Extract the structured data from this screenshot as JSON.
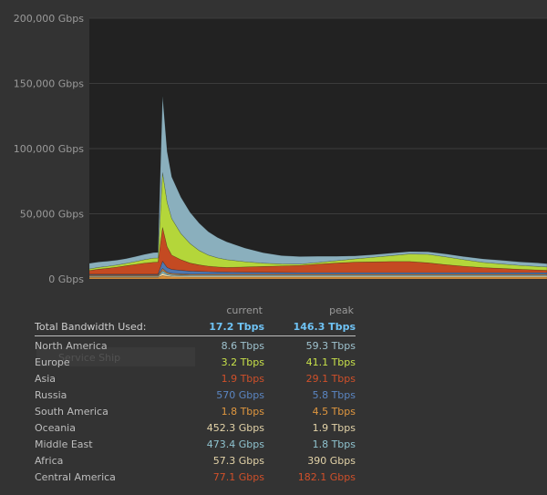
{
  "chart_data": {
    "type": "area",
    "stacked": true,
    "y_ticks": [
      "0 Gbps",
      "50,000 Gbps",
      "100,000 Gbps",
      "150,000 Gbps",
      "200,000 Gbps"
    ],
    "ylim": [
      0,
      200000
    ],
    "grid": true,
    "x": [
      0,
      2,
      4,
      6,
      8,
      10,
      12,
      14,
      15,
      16,
      17,
      18,
      20,
      22,
      24,
      26,
      28,
      30,
      34,
      38,
      42,
      46,
      50,
      54,
      58,
      62,
      66,
      70,
      74,
      78,
      82,
      86,
      90,
      94,
      98,
      100
    ],
    "series": [
      {
        "color": "#d98f3a",
        "values": [
          1300,
          1300,
          1300,
          1300,
          1300,
          1300,
          1300,
          1300,
          1300,
          2600,
          1900,
          1600,
          1500,
          1400,
          1400,
          1400,
          1400,
          1400,
          1400,
          1400,
          1400,
          1400,
          1400,
          1400,
          1400,
          1400,
          1400,
          1400,
          1400,
          1400,
          1400,
          1400,
          1400,
          1400,
          1400,
          1400
        ]
      },
      {
        "color": "#f0d9a6",
        "values": [
          500,
          500,
          500,
          500,
          500,
          500,
          500,
          500,
          500,
          1900,
          1100,
          900,
          800,
          700,
          700,
          700,
          700,
          700,
          700,
          700,
          700,
          700,
          700,
          700,
          700,
          700,
          700,
          700,
          700,
          700,
          700,
          700,
          700,
          700,
          700,
          700
        ]
      },
      {
        "color": "#7eb8c4",
        "values": [
          500,
          500,
          500,
          500,
          500,
          500,
          500,
          500,
          500,
          1800,
          1100,
          900,
          800,
          700,
          700,
          700,
          700,
          700,
          700,
          700,
          700,
          700,
          700,
          700,
          700,
          700,
          700,
          700,
          700,
          700,
          700,
          700,
          700,
          700,
          700,
          700
        ]
      },
      {
        "color": "#c07a3a",
        "values": [
          800,
          800,
          800,
          800,
          800,
          800,
          800,
          800,
          800,
          1800,
          1100,
          900,
          800,
          800,
          800,
          800,
          800,
          800,
          800,
          800,
          800,
          800,
          800,
          800,
          800,
          800,
          800,
          800,
          800,
          800,
          800,
          800,
          800,
          800,
          800,
          800
        ]
      },
      {
        "color": "#4f78b0",
        "values": [
          500,
          500,
          500,
          500,
          500,
          500,
          500,
          500,
          500,
          5500,
          3500,
          3000,
          2700,
          2400,
          2200,
          2000,
          1800,
          1700,
          1600,
          1500,
          1400,
          1300,
          1300,
          1300,
          1300,
          1300,
          1300,
          1300,
          1300,
          1300,
          1300,
          1300,
          1300,
          1300,
          1300,
          1300
        ]
      },
      {
        "color": "#c44a22",
        "values": [
          2900,
          3900,
          4600,
          5500,
          6500,
          7500,
          8500,
          9200,
          9300,
          26000,
          16000,
          11000,
          8200,
          6200,
          5000,
          4200,
          3800,
          3500,
          4000,
          4500,
          5000,
          5500,
          6500,
          7300,
          8000,
          8200,
          8500,
          8500,
          7500,
          6000,
          4800,
          3800,
          3200,
          2500,
          2000,
          1700
        ]
      },
      {
        "color": "#b4d63a",
        "values": [
          1200,
          1400,
          1500,
          1600,
          1800,
          2200,
          2700,
          3200,
          3200,
          42000,
          34000,
          28000,
          20000,
          15000,
          11000,
          8500,
          7000,
          6000,
          4000,
          2500,
          1500,
          1000,
          1200,
          1800,
          2500,
          3500,
          4500,
          5800,
          6500,
          6000,
          5000,
          4000,
          3400,
          3000,
          2700,
          2600
        ]
      },
      {
        "color": "#8aafbd",
        "values": [
          4300,
          4100,
          3900,
          3700,
          3700,
          3800,
          4000,
          4200,
          4300,
          59000,
          39000,
          32000,
          28000,
          24000,
          21000,
          18000,
          15600,
          13700,
          10500,
          8000,
          6400,
          5800,
          4800,
          3400,
          2300,
          2000,
          1900,
          1800,
          1900,
          2200,
          2400,
          2700,
          2800,
          2700,
          2700,
          2500
        ]
      }
    ]
  },
  "stats": {
    "header": {
      "current": "current",
      "peak": "peak"
    },
    "total": {
      "label": "Total Bandwidth Used:",
      "current": "17.2 Tbps",
      "peak": "146.3 Tbps"
    },
    "rows": [
      {
        "label": "North America",
        "current": "8.6 Tbps",
        "peak": "59.3 Tbps",
        "current_color": "#9fc3cf",
        "peak_color": "#9fc3cf"
      },
      {
        "label": "Europe",
        "current": "3.2 Tbps",
        "peak": "41.1 Tbps",
        "current_color": "#c7e04a",
        "peak_color": "#c7e04a"
      },
      {
        "label": "Asia",
        "current": "1.9 Tbps",
        "peak": "29.1 Tbps",
        "current_color": "#d0502a",
        "peak_color": "#d0502a"
      },
      {
        "label": "Russia",
        "current": "570 Gbps",
        "peak": "5.8 Tbps",
        "current_color": "#5b86c2",
        "peak_color": "#5b86c2"
      },
      {
        "label": "South America",
        "current": "1.8 Tbps",
        "peak": "4.5 Tbps",
        "current_color": "#e0973f",
        "peak_color": "#e0973f"
      },
      {
        "label": "Oceania",
        "current": "452.3 Gbps",
        "peak": "1.9 Tbps",
        "current_color": "#e3d3a8",
        "peak_color": "#e3d3a8"
      },
      {
        "label": "Middle East",
        "current": "473.4 Gbps",
        "peak": "1.8 Tbps",
        "current_color": "#8fc3cf",
        "peak_color": "#8fc3cf"
      },
      {
        "label": "Africa",
        "current": "57.3 Gbps",
        "peak": "390 Gbps",
        "current_color": "#e3d3a8",
        "peak_color": "#e3d3a8"
      },
      {
        "label": "Central America",
        "current": "77.1 Gbps",
        "peak": "182.1 Gbps",
        "current_color": "#d0502a",
        "peak_color": "#d0502a"
      }
    ]
  },
  "ghost_text": "Service Ship"
}
